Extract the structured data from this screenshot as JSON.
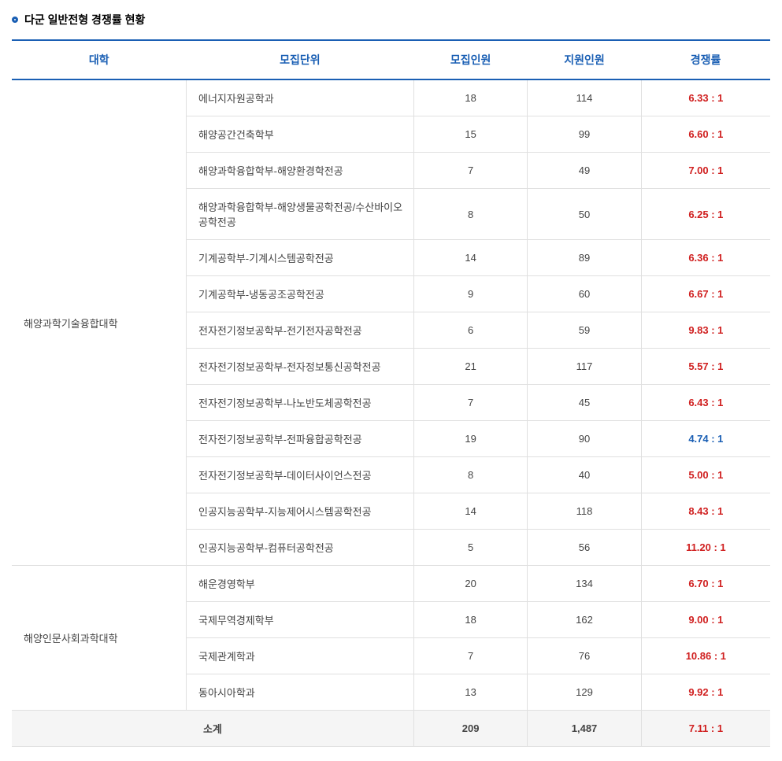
{
  "title": "다군 일반전형 경쟁률 현황",
  "headers": {
    "college": "대학",
    "major": "모집단위",
    "quota": "모집인원",
    "applicants": "지원인원",
    "ratio": "경쟁률"
  },
  "colors": {
    "header_text": "#1a5fb4",
    "border_top": "#1a5fb4",
    "row_border": "#e0e0e0",
    "ratio_red": "#d02020",
    "ratio_blue": "#1a5fb4",
    "subtotal_bg": "#f5f5f5",
    "text": "#444444"
  },
  "groups": [
    {
      "college": "해양과학기술융합대학",
      "rowspan": 13,
      "rows": [
        {
          "major": "에너지자원공학과",
          "quota": "18",
          "applicants": "114",
          "ratio": "6.33 : 1",
          "ratio_color": "red"
        },
        {
          "major": "해양공간건축학부",
          "quota": "15",
          "applicants": "99",
          "ratio": "6.60 : 1",
          "ratio_color": "red"
        },
        {
          "major": "해양과학융합학부-해양환경학전공",
          "quota": "7",
          "applicants": "49",
          "ratio": "7.00 : 1",
          "ratio_color": "red"
        },
        {
          "major": "해양과학융합학부-해양생물공학전공/수산바이오공학전공",
          "quota": "8",
          "applicants": "50",
          "ratio": "6.25 : 1",
          "ratio_color": "red"
        },
        {
          "major": "기계공학부-기계시스템공학전공",
          "quota": "14",
          "applicants": "89",
          "ratio": "6.36 : 1",
          "ratio_color": "red"
        },
        {
          "major": "기계공학부-냉동공조공학전공",
          "quota": "9",
          "applicants": "60",
          "ratio": "6.67 : 1",
          "ratio_color": "red"
        },
        {
          "major": "전자전기정보공학부-전기전자공학전공",
          "quota": "6",
          "applicants": "59",
          "ratio": "9.83 : 1",
          "ratio_color": "red"
        },
        {
          "major": "전자전기정보공학부-전자정보통신공학전공",
          "quota": "21",
          "applicants": "117",
          "ratio": "5.57 : 1",
          "ratio_color": "red"
        },
        {
          "major": "전자전기정보공학부-나노반도체공학전공",
          "quota": "7",
          "applicants": "45",
          "ratio": "6.43 : 1",
          "ratio_color": "red"
        },
        {
          "major": "전자전기정보공학부-전파융합공학전공",
          "quota": "19",
          "applicants": "90",
          "ratio": "4.74 : 1",
          "ratio_color": "blue"
        },
        {
          "major": "전자전기정보공학부-데이터사이언스전공",
          "quota": "8",
          "applicants": "40",
          "ratio": "5.00 : 1",
          "ratio_color": "red"
        },
        {
          "major": "인공지능공학부-지능제어시스템공학전공",
          "quota": "14",
          "applicants": "118",
          "ratio": "8.43 : 1",
          "ratio_color": "red"
        },
        {
          "major": "인공지능공학부-컴퓨터공학전공",
          "quota": "5",
          "applicants": "56",
          "ratio": "11.20 : 1",
          "ratio_color": "red"
        }
      ]
    },
    {
      "college": "해양인문사회과학대학",
      "rowspan": 4,
      "rows": [
        {
          "major": "해운경영학부",
          "quota": "20",
          "applicants": "134",
          "ratio": "6.70 : 1",
          "ratio_color": "red"
        },
        {
          "major": "국제무역경제학부",
          "quota": "18",
          "applicants": "162",
          "ratio": "9.00 : 1",
          "ratio_color": "red"
        },
        {
          "major": "국제관계학과",
          "quota": "7",
          "applicants": "76",
          "ratio": "10.86 : 1",
          "ratio_color": "red"
        },
        {
          "major": "동아시아학과",
          "quota": "13",
          "applicants": "129",
          "ratio": "9.92 : 1",
          "ratio_color": "red"
        }
      ]
    }
  ],
  "subtotal": {
    "label": "소계",
    "quota": "209",
    "applicants": "1,487",
    "ratio": "7.11 : 1",
    "ratio_color": "red"
  }
}
